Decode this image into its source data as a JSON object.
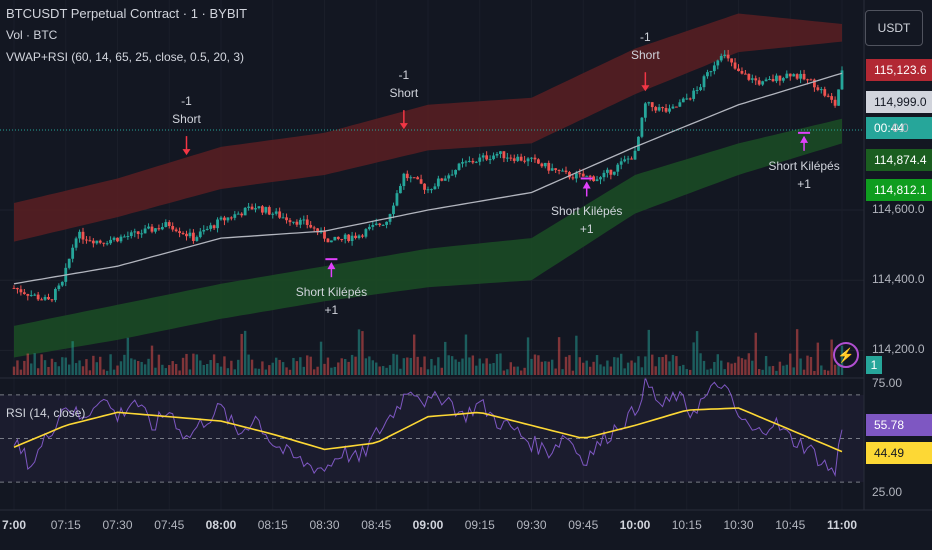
{
  "header": {
    "symbol_title": "BTCUSDT Perpetual Contract · 1 · BYBIT",
    "volume_legend": "Vol · BTC",
    "indicator_legend": "VWAP+RSI (60, 14, 65, 25, close, 0.5, 20, 3)",
    "rsi_legend": "RSI (14, close)",
    "currency": "USDT"
  },
  "colors": {
    "background": "#131722",
    "up": "#26a69a",
    "down": "#ef5350",
    "vwap": "#b2b5be",
    "upper_band": "#5a1e22",
    "lower_band": "#1b4d25",
    "rsi_line": "#7e57c2",
    "rsi_ma": "#fdd835",
    "signal_arrow_short": "#f23645",
    "signal_arrow_exit": "#e040fb"
  },
  "price_tags": [
    {
      "label": "115,123.6",
      "bg": "#b22833",
      "fg": "#ffffff"
    },
    {
      "label": "114,999.0",
      "bg": "#d1d4dc",
      "fg": "#131722"
    },
    {
      "label": "00:44",
      "bg": "#26a69a",
      "fg": "#ffffff"
    },
    {
      "label": "114,874.4",
      "bg": "#1b5e20",
      "fg": "#ffffff"
    },
    {
      "label": "114,812.1",
      "bg": "#0f9d1f",
      "fg": "#ffffff"
    }
  ],
  "partial_price_label": "0.0",
  "bolt_icon": "lightning-icon",
  "signal_count": "1",
  "rsi_tags": [
    {
      "label": "55.78",
      "bg": "#7e57c2",
      "fg": "#ffffff"
    },
    {
      "label": "44.49",
      "bg": "#fdd835",
      "fg": "#131722"
    }
  ],
  "signals": [
    {
      "type": "short",
      "line1": "-1",
      "line2": "Short",
      "time": "07:50",
      "price": 114748
    },
    {
      "type": "short",
      "line1": "-1",
      "line2": "Short",
      "time": "08:53",
      "price": 114822
    },
    {
      "type": "short",
      "line1": "-1",
      "line2": "Short",
      "time": "10:03",
      "price": 114930
    },
    {
      "type": "exit",
      "line1": "Short Kilépés",
      "line2": "+1",
      "time": "08:32",
      "price": 114460
    },
    {
      "type": "exit",
      "line1": "Short Kilépés",
      "line2": "+1",
      "time": "09:46",
      "price": 114690
    },
    {
      "type": "exit",
      "line1": "Short Kilépés",
      "line2": "+1",
      "time": "10:49",
      "price": 114820
    }
  ],
  "chart_data": {
    "type": "candlestick",
    "price_axis": {
      "ticks": [
        114200,
        114400,
        114600
      ],
      "tick_labels": [
        "114,200.0",
        "114,400.0",
        "114,600.0"
      ],
      "range": [
        114130,
        115170
      ]
    },
    "rsi_axis": {
      "ticks": [
        25,
        75
      ],
      "tick_labels": [
        "25.00",
        "75.00"
      ],
      "range": [
        25,
        75
      ],
      "bands": [
        30,
        50,
        70
      ]
    },
    "time_axis": {
      "labels": [
        "7:00",
        "07:15",
        "07:30",
        "07:45",
        "08:00",
        "08:15",
        "08:30",
        "08:45",
        "09:00",
        "09:15",
        "09:30",
        "09:45",
        "10:00",
        "10:15",
        "10:30",
        "10:45",
        "11:00"
      ],
      "bold": [
        "7:00",
        "08:00",
        "09:00",
        "10:00",
        "11:00"
      ]
    },
    "close_series": [
      {
        "t": "07:00",
        "v": 114378
      },
      {
        "t": "07:10",
        "v": 114340
      },
      {
        "t": "07:14",
        "v": 114390
      },
      {
        "t": "07:18",
        "v": 114530
      },
      {
        "t": "07:25",
        "v": 114510
      },
      {
        "t": "07:35",
        "v": 114530
      },
      {
        "t": "07:45",
        "v": 114560
      },
      {
        "t": "07:52",
        "v": 114520
      },
      {
        "t": "08:00",
        "v": 114570
      },
      {
        "t": "08:10",
        "v": 114610
      },
      {
        "t": "08:18",
        "v": 114580
      },
      {
        "t": "08:25",
        "v": 114560
      },
      {
        "t": "08:32",
        "v": 114510
      },
      {
        "t": "08:40",
        "v": 114530
      },
      {
        "t": "08:48",
        "v": 114570
      },
      {
        "t": "08:53",
        "v": 114700
      },
      {
        "t": "09:00",
        "v": 114660
      },
      {
        "t": "09:10",
        "v": 114730
      },
      {
        "t": "09:20",
        "v": 114760
      },
      {
        "t": "09:30",
        "v": 114740
      },
      {
        "t": "09:40",
        "v": 114700
      },
      {
        "t": "09:50",
        "v": 114690
      },
      {
        "t": "10:00",
        "v": 114760
      },
      {
        "t": "10:03",
        "v": 114900
      },
      {
        "t": "10:10",
        "v": 114880
      },
      {
        "t": "10:18",
        "v": 114940
      },
      {
        "t": "10:25",
        "v": 115050
      },
      {
        "t": "10:30",
        "v": 114990
      },
      {
        "t": "10:37",
        "v": 114960
      },
      {
        "t": "10:45",
        "v": 114990
      },
      {
        "t": "10:52",
        "v": 114960
      },
      {
        "t": "10:58",
        "v": 114900
      },
      {
        "t": "11:00",
        "v": 114990
      }
    ],
    "vwap_series": [
      {
        "t": "07:00",
        "v": 114390
      },
      {
        "t": "07:30",
        "v": 114440
      },
      {
        "t": "08:00",
        "v": 114520
      },
      {
        "t": "08:30",
        "v": 114540
      },
      {
        "t": "09:00",
        "v": 114600
      },
      {
        "t": "09:30",
        "v": 114650
      },
      {
        "t": "10:00",
        "v": 114780
      },
      {
        "t": "10:30",
        "v": 114900
      },
      {
        "t": "11:00",
        "v": 114990
      }
    ],
    "upper_band": [
      {
        "t": "07:00",
        "lo": 114510,
        "hi": 114620
      },
      {
        "t": "07:30",
        "lo": 114580,
        "hi": 114690
      },
      {
        "t": "08:00",
        "lo": 114660,
        "hi": 114780
      },
      {
        "t": "08:30",
        "lo": 114700,
        "hi": 114820
      },
      {
        "t": "09:00",
        "lo": 114770,
        "hi": 114900
      },
      {
        "t": "09:30",
        "lo": 114790,
        "hi": 114920
      },
      {
        "t": "10:00",
        "lo": 114930,
        "hi": 115060
      },
      {
        "t": "10:30",
        "lo": 115050,
        "hi": 115160
      },
      {
        "t": "11:00",
        "lo": 115080,
        "hi": 115130
      }
    ],
    "lower_band": [
      {
        "t": "07:00",
        "lo": 114180,
        "hi": 114270
      },
      {
        "t": "07:30",
        "lo": 114230,
        "hi": 114330
      },
      {
        "t": "08:00",
        "lo": 114290,
        "hi": 114390
      },
      {
        "t": "08:30",
        "lo": 114340,
        "hi": 114440
      },
      {
        "t": "09:00",
        "lo": 114380,
        "hi": 114490
      },
      {
        "t": "09:30",
        "lo": 114400,
        "hi": 114520
      },
      {
        "t": "10:00",
        "lo": 114590,
        "hi": 114700
      },
      {
        "t": "10:30",
        "lo": 114700,
        "hi": 114790
      },
      {
        "t": "11:00",
        "lo": 114790,
        "hi": 114860
      }
    ],
    "rsi_series": [
      {
        "t": "07:00",
        "v": 48
      },
      {
        "t": "07:05",
        "v": 38
      },
      {
        "t": "07:10",
        "v": 52
      },
      {
        "t": "07:15",
        "v": 66
      },
      {
        "t": "07:20",
        "v": 58
      },
      {
        "t": "07:25",
        "v": 70
      },
      {
        "t": "07:30",
        "v": 60
      },
      {
        "t": "07:35",
        "v": 68
      },
      {
        "t": "07:40",
        "v": 55
      },
      {
        "t": "07:45",
        "v": 63
      },
      {
        "t": "07:50",
        "v": 50
      },
      {
        "t": "07:55",
        "v": 58
      },
      {
        "t": "08:00",
        "v": 64
      },
      {
        "t": "08:05",
        "v": 52
      },
      {
        "t": "08:10",
        "v": 60
      },
      {
        "t": "08:15",
        "v": 48
      },
      {
        "t": "08:20",
        "v": 42
      },
      {
        "t": "08:25",
        "v": 38
      },
      {
        "t": "08:30",
        "v": 36
      },
      {
        "t": "08:35",
        "v": 44
      },
      {
        "t": "08:40",
        "v": 40
      },
      {
        "t": "08:45",
        "v": 52
      },
      {
        "t": "08:50",
        "v": 62
      },
      {
        "t": "08:55",
        "v": 74
      },
      {
        "t": "09:00",
        "v": 66
      },
      {
        "t": "09:05",
        "v": 70
      },
      {
        "t": "09:10",
        "v": 60
      },
      {
        "t": "09:15",
        "v": 66
      },
      {
        "t": "09:20",
        "v": 58
      },
      {
        "t": "09:25",
        "v": 54
      },
      {
        "t": "09:30",
        "v": 48
      },
      {
        "t": "09:35",
        "v": 44
      },
      {
        "t": "09:40",
        "v": 52
      },
      {
        "t": "09:45",
        "v": 40
      },
      {
        "t": "09:50",
        "v": 48
      },
      {
        "t": "09:55",
        "v": 56
      },
      {
        "t": "10:00",
        "v": 62
      },
      {
        "t": "10:03",
        "v": 76
      },
      {
        "t": "10:08",
        "v": 64
      },
      {
        "t": "10:12",
        "v": 70
      },
      {
        "t": "10:16",
        "v": 62
      },
      {
        "t": "10:20",
        "v": 68
      },
      {
        "t": "10:25",
        "v": 76
      },
      {
        "t": "10:30",
        "v": 60
      },
      {
        "t": "10:35",
        "v": 52
      },
      {
        "t": "10:40",
        "v": 58
      },
      {
        "t": "10:45",
        "v": 50
      },
      {
        "t": "10:50",
        "v": 46
      },
      {
        "t": "10:55",
        "v": 38
      },
      {
        "t": "10:58",
        "v": 34
      },
      {
        "t": "11:00",
        "v": 56
      }
    ],
    "rsi_ma_series": [
      {
        "t": "07:00",
        "v": 46
      },
      {
        "t": "07:15",
        "v": 56
      },
      {
        "t": "07:30",
        "v": 62
      },
      {
        "t": "07:45",
        "v": 60
      },
      {
        "t": "08:00",
        "v": 58
      },
      {
        "t": "08:15",
        "v": 52
      },
      {
        "t": "08:30",
        "v": 45
      },
      {
        "t": "08:45",
        "v": 48
      },
      {
        "t": "09:00",
        "v": 60
      },
      {
        "t": "09:15",
        "v": 62
      },
      {
        "t": "09:30",
        "v": 56
      },
      {
        "t": "09:45",
        "v": 50
      },
      {
        "t": "10:00",
        "v": 56
      },
      {
        "t": "10:15",
        "v": 63
      },
      {
        "t": "10:30",
        "v": 64
      },
      {
        "t": "10:45",
        "v": 54
      },
      {
        "t": "11:00",
        "v": 44
      }
    ]
  }
}
